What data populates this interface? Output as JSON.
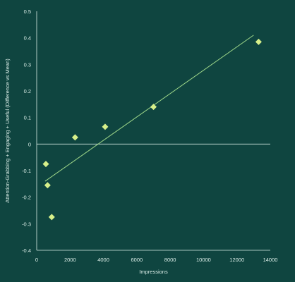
{
  "chart_data": {
    "type": "scatter",
    "xlabel": "Impressions",
    "ylabel": "Attention-Grabbing + Engaging + Useful (Difference vs Mean)",
    "xlim": [
      0,
      14000
    ],
    "ylim": [
      -0.4,
      0.5
    ],
    "x_ticks": [
      "0",
      "2000",
      "4000",
      "6000",
      "8000",
      "10000",
      "12000",
      "14000"
    ],
    "y_ticks": [
      "0.5",
      "0.4",
      "0.3",
      "0.2",
      "0.1",
      "0",
      "-0.1",
      "-0.2",
      "-0.3",
      "-0.4"
    ],
    "points": [
      {
        "x": 550,
        "y": -0.075
      },
      {
        "x": 650,
        "y": -0.155
      },
      {
        "x": 900,
        "y": -0.275
      },
      {
        "x": 2300,
        "y": 0.025
      },
      {
        "x": 4100,
        "y": 0.065
      },
      {
        "x": 7000,
        "y": 0.14
      },
      {
        "x": 13300,
        "y": 0.385
      }
    ],
    "trendline": {
      "x": [
        500,
        13000
      ],
      "y": [
        -0.14,
        0.41
      ]
    },
    "zero_line": true,
    "grid": false,
    "colors": {
      "background": "#0f4540",
      "marker": "#d7f08a",
      "trendline": "#9fd88a",
      "axis": "#d9ece6",
      "text": "#d9ece6"
    }
  }
}
